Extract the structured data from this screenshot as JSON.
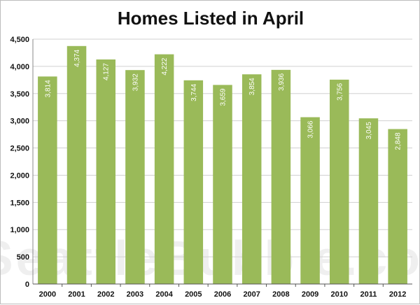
{
  "chart_data": {
    "type": "bar",
    "title": "Homes Listed in April",
    "xlabel": "",
    "ylabel": "",
    "categories": [
      "2000",
      "2001",
      "2002",
      "2003",
      "2004",
      "2005",
      "2006",
      "2007",
      "2008",
      "2009",
      "2010",
      "2011",
      "2012"
    ],
    "values": [
      3814,
      4374,
      4127,
      3932,
      4222,
      3744,
      3659,
      3854,
      3936,
      3066,
      3756,
      3045,
      2848
    ],
    "data_labels": [
      "3,814",
      "4,374",
      "4,127",
      "3,932",
      "4,222",
      "3,744",
      "3,659",
      "3,854",
      "3,936",
      "3,066",
      "3,756",
      "3,045",
      "2,848"
    ],
    "ylim": [
      0,
      4500
    ],
    "yticks": [
      0,
      500,
      1000,
      1500,
      2000,
      2500,
      3000,
      3500,
      4000,
      4500
    ],
    "ytick_labels": [
      "0",
      "500",
      "1,000",
      "1,500",
      "2,000",
      "2,500",
      "3,000",
      "3,500",
      "4,000",
      "4,500"
    ],
    "grid": true,
    "bar_color": "#9aba59",
    "grid_color": "#d0d0d0",
    "watermark": "SeattleBubble.com"
  }
}
